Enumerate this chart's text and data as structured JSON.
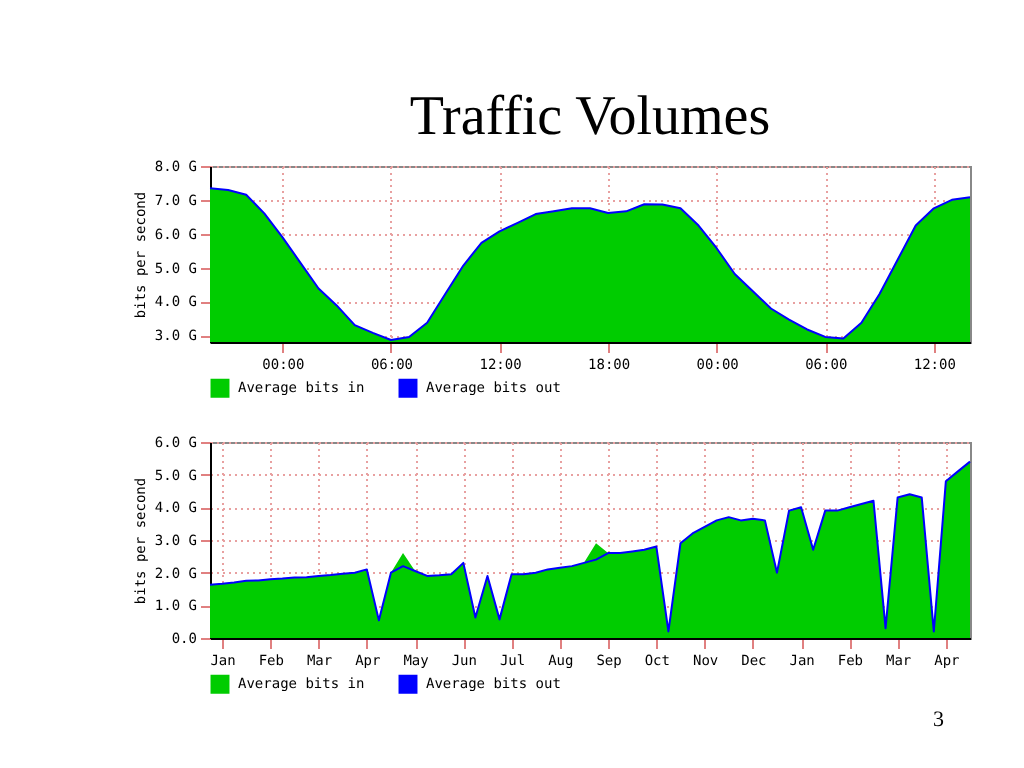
{
  "chart_data": [
    {
      "type": "area",
      "title": "Traffic Volumes",
      "ylabel": "bits per second",
      "ylim": [
        2.8,
        8.0
      ],
      "categories": [
        null,
        null,
        null,
        null,
        "00:00",
        null,
        null,
        null,
        null,
        null,
        "06:00",
        null,
        null,
        null,
        null,
        null,
        "12:00",
        null,
        null,
        null,
        null,
        null,
        "18:00",
        null,
        null,
        null,
        null,
        null,
        "00:00",
        null,
        null,
        null,
        null,
        null,
        "06:00",
        null,
        null,
        null,
        null,
        null,
        "12:00",
        null,
        null
      ],
      "yticks": [
        {
          "value": 3,
          "label": "3.0 G"
        },
        {
          "value": 4,
          "label": "4.0 G"
        },
        {
          "value": 5,
          "label": "5.0 G"
        },
        {
          "value": 6,
          "label": "6.0 G"
        },
        {
          "value": 7,
          "label": "7.0 G"
        },
        {
          "value": 8,
          "label": "8.0 G"
        }
      ],
      "series": [
        {
          "name": "Average bits in",
          "color": "#00cc00",
          "values": [
            7.34,
            7.29,
            7.15,
            6.6,
            5.9,
            5.14,
            4.38,
            3.88,
            3.3,
            3.07,
            2.86,
            2.95,
            3.37,
            4.22,
            5.06,
            5.73,
            6.07,
            6.32,
            6.58,
            6.66,
            6.75,
            6.75,
            6.61,
            6.66,
            6.87,
            6.86,
            6.75,
            6.24,
            5.57,
            4.81,
            4.3,
            3.79,
            3.46,
            3.17,
            2.95,
            2.9,
            3.37,
            4.22,
            5.23,
            6.24,
            6.75,
            7.0,
            7.08
          ]
        },
        {
          "name": "Average bits out",
          "type": "line",
          "color": "#0000ff",
          "values": [
            7.34,
            7.29,
            7.15,
            6.6,
            5.9,
            5.14,
            4.38,
            3.88,
            3.3,
            3.07,
            2.86,
            2.95,
            3.37,
            4.22,
            5.06,
            5.73,
            6.07,
            6.32,
            6.58,
            6.66,
            6.75,
            6.75,
            6.61,
            6.66,
            6.87,
            6.86,
            6.75,
            6.24,
            5.57,
            4.81,
            4.3,
            3.79,
            3.46,
            3.17,
            2.95,
            2.9,
            3.37,
            4.22,
            5.23,
            6.24,
            6.75,
            7.0,
            7.08
          ]
        }
      ],
      "grid": true,
      "legend": "bottom"
    },
    {
      "type": "area",
      "ylabel": "bits per second",
      "ylim": [
        0,
        6
      ],
      "categories": [
        null,
        "Jan",
        null,
        null,
        null,
        "Feb",
        null,
        null,
        null,
        "Mar",
        null,
        null,
        null,
        "Apr",
        null,
        null,
        null,
        "May",
        null,
        null,
        null,
        "Jun",
        null,
        null,
        null,
        "Jul",
        null,
        null,
        null,
        "Aug",
        null,
        null,
        null,
        "Sep",
        null,
        null,
        null,
        "Oct",
        null,
        null,
        null,
        "Nov",
        null,
        null,
        null,
        "Dec",
        null,
        null,
        null,
        "Jan",
        null,
        null,
        null,
        "Feb",
        null,
        null,
        null,
        "Mar",
        null,
        null,
        null,
        "Apr",
        null,
        null
      ],
      "yticks": [
        {
          "value": 0,
          "label": "0.0"
        },
        {
          "value": 1,
          "label": "1.0 G"
        },
        {
          "value": 2,
          "label": "2.0 G"
        },
        {
          "value": 3,
          "label": "3.0 G"
        },
        {
          "value": 4,
          "label": "4.0 G"
        },
        {
          "value": 5,
          "label": "5.0 G"
        },
        {
          "value": 6,
          "label": "6.0 G"
        }
      ],
      "series": [
        {
          "name": "Average bits in",
          "color": "#00cc00",
          "values": [
            1.63,
            1.66,
            1.7,
            1.75,
            1.76,
            1.8,
            1.82,
            1.85,
            1.86,
            1.9,
            1.93,
            1.97,
            2.0,
            2.1,
            0.54,
            2.0,
            2.6,
            2.05,
            1.9,
            1.92,
            1.95,
            2.3,
            0.63,
            1.9,
            0.57,
            1.95,
            1.95,
            2.0,
            2.1,
            2.15,
            2.2,
            2.3,
            2.9,
            2.6,
            2.6,
            2.65,
            2.7,
            2.8,
            0.2,
            2.9,
            3.2,
            3.4,
            3.6,
            3.7,
            3.6,
            3.65,
            3.6,
            2.0,
            3.9,
            4.0,
            2.7,
            3.9,
            3.9,
            4.0,
            4.1,
            4.2,
            0.3,
            4.3,
            4.4,
            4.3,
            0.2,
            4.8,
            5.1,
            5.4
          ]
        },
        {
          "name": "Average bits out",
          "type": "line",
          "color": "#0000ff",
          "values": [
            1.63,
            1.66,
            1.7,
            1.75,
            1.76,
            1.8,
            1.82,
            1.85,
            1.86,
            1.9,
            1.93,
            1.97,
            2.0,
            2.1,
            0.54,
            2.0,
            2.2,
            2.05,
            1.9,
            1.92,
            1.95,
            2.3,
            0.63,
            1.9,
            0.57,
            1.95,
            1.95,
            2.0,
            2.1,
            2.15,
            2.2,
            2.3,
            2.4,
            2.6,
            2.6,
            2.65,
            2.7,
            2.8,
            0.2,
            2.9,
            3.2,
            3.4,
            3.6,
            3.7,
            3.6,
            3.65,
            3.6,
            2.0,
            3.9,
            4.0,
            2.7,
            3.9,
            3.9,
            4.0,
            4.1,
            4.2,
            0.3,
            4.3,
            4.4,
            4.3,
            0.2,
            4.8,
            5.1,
            5.4
          ]
        }
      ],
      "annotations": [
        "3"
      ],
      "grid": true,
      "legend": "bottom"
    }
  ]
}
